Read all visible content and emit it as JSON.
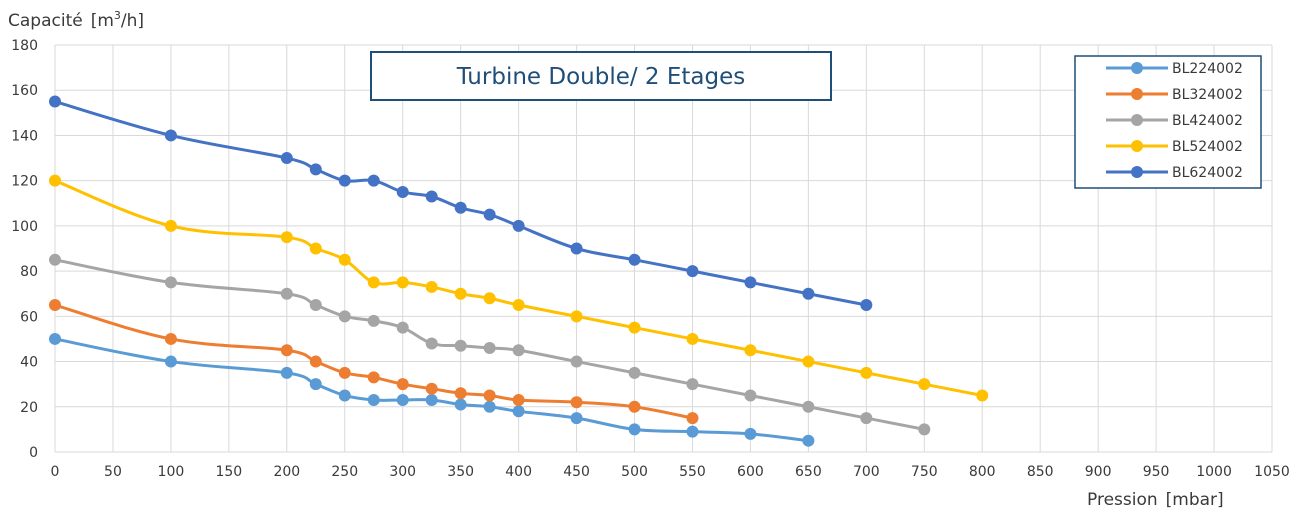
{
  "chart_data": {
    "type": "line",
    "title": "Turbine Double/ 2 Etages",
    "ylabel": "Capacité",
    "ylabel_unit_prefix": "[m",
    "ylabel_unit_sup": "3",
    "ylabel_unit_suffix": "/h]",
    "xlabel": "Pression",
    "xlabel_unit": "[mbar]",
    "xlim": [
      0,
      1050
    ],
    "ylim": [
      0,
      180
    ],
    "xticks": [
      0,
      50,
      100,
      150,
      200,
      250,
      300,
      350,
      400,
      450,
      500,
      550,
      600,
      650,
      700,
      750,
      800,
      850,
      900,
      950,
      1000,
      1050
    ],
    "yticks": [
      0,
      20,
      40,
      60,
      80,
      100,
      120,
      140,
      160,
      180
    ],
    "grid": true,
    "legend_position": "top-right",
    "series": [
      {
        "name": "BL224002",
        "color": "#5b9bd5",
        "x": [
          0,
          100,
          200,
          225,
          250,
          275,
          300,
          325,
          350,
          375,
          400,
          450,
          500,
          550,
          600,
          650
        ],
        "y": [
          50,
          40,
          35,
          30,
          25,
          23,
          23,
          23,
          21,
          20,
          18,
          15,
          10,
          9,
          8,
          5
        ]
      },
      {
        "name": "BL324002",
        "color": "#ed7d31",
        "x": [
          0,
          100,
          200,
          225,
          250,
          275,
          300,
          325,
          350,
          375,
          400,
          450,
          500,
          550
        ],
        "y": [
          65,
          50,
          45,
          40,
          35,
          33,
          30,
          28,
          26,
          25,
          23,
          22,
          20,
          15
        ]
      },
      {
        "name": "BL424002",
        "color": "#a5a5a5",
        "x": [
          0,
          100,
          200,
          225,
          250,
          275,
          300,
          325,
          350,
          375,
          400,
          450,
          500,
          550,
          600,
          650,
          700,
          750
        ],
        "y": [
          85,
          75,
          70,
          65,
          60,
          58,
          55,
          48,
          47,
          46,
          45,
          40,
          35,
          30,
          25,
          20,
          15,
          10
        ]
      },
      {
        "name": "BL524002",
        "color": "#ffc000",
        "x": [
          0,
          100,
          200,
          225,
          250,
          275,
          300,
          325,
          350,
          375,
          400,
          450,
          500,
          550,
          600,
          650,
          700,
          750,
          800
        ],
        "y": [
          120,
          100,
          95,
          90,
          85,
          75,
          75,
          73,
          70,
          68,
          65,
          60,
          55,
          50,
          45,
          40,
          35,
          30,
          25
        ]
      },
      {
        "name": "BL624002",
        "color": "#4472c4",
        "x": [
          0,
          100,
          200,
          225,
          250,
          275,
          300,
          325,
          350,
          375,
          400,
          450,
          500,
          550,
          600,
          650,
          700
        ],
        "y": [
          155,
          140,
          130,
          125,
          120,
          120,
          115,
          113,
          108,
          105,
          100,
          90,
          85,
          80,
          75,
          70,
          65
        ]
      }
    ]
  }
}
